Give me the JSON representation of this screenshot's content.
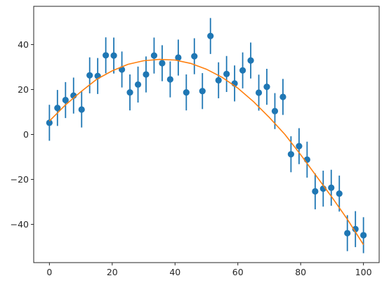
{
  "chart_data": {
    "type": "scatter",
    "title": "",
    "xlabel": "",
    "ylabel": "",
    "xlim": [
      -5,
      105
    ],
    "ylim": [
      -57,
      57
    ],
    "x_ticks": [
      0,
      20,
      40,
      60,
      80,
      100
    ],
    "y_ticks": [
      -40,
      -20,
      0,
      20,
      40
    ],
    "x_tick_labels": [
      "0",
      "20",
      "40",
      "60",
      "80",
      "100"
    ],
    "y_tick_labels": [
      "−40",
      "−20",
      "0",
      "20",
      "40"
    ],
    "grid": false,
    "legend": "none",
    "series": [
      {
        "kind": "errorbar",
        "color": "#1f77b4",
        "x": [
          0,
          2.56,
          5.13,
          7.69,
          10.26,
          12.82,
          15.38,
          17.95,
          20.51,
          23.08,
          25.64,
          28.21,
          30.77,
          33.33,
          35.9,
          38.46,
          41.03,
          43.59,
          46.15,
          48.72,
          51.28,
          53.85,
          56.41,
          58.97,
          61.54,
          64.1,
          66.67,
          69.23,
          71.79,
          74.36,
          76.92,
          79.49,
          82.05,
          84.62,
          87.18,
          89.74,
          92.31,
          94.87,
          97.44,
          100
        ],
        "y": [
          5.2,
          11.8,
          15.3,
          17.3,
          11.1,
          26.3,
          26.0,
          35.2,
          35.1,
          28.9,
          18.7,
          22.2,
          26.7,
          35.1,
          31.7,
          24.5,
          34.2,
          18.7,
          34.8,
          19.3,
          43.8,
          24.1,
          26.9,
          22.7,
          28.5,
          32.9,
          18.6,
          21.2,
          10.4,
          16.7,
          -8.8,
          -5.2,
          -11.2,
          -25.3,
          -24.1,
          -23.7,
          -26.3,
          -43.9,
          -42.1,
          -44.8
        ],
        "yerr": 8
      },
      {
        "kind": "line",
        "color": "#ff7f0e",
        "x": [
          0,
          5,
          10,
          15,
          20,
          25,
          30,
          35,
          40,
          45,
          50,
          55,
          60,
          65,
          70,
          75,
          80,
          85,
          90,
          95,
          100
        ],
        "y": [
          6.0,
          13.0,
          19.0,
          24.5,
          28.3,
          31.2,
          32.8,
          33.4,
          33.1,
          31.6,
          29.0,
          25.4,
          20.6,
          14.6,
          7.6,
          0.0,
          -9.0,
          -18.5,
          -28.0,
          -38.0,
          -49.0
        ]
      }
    ]
  }
}
